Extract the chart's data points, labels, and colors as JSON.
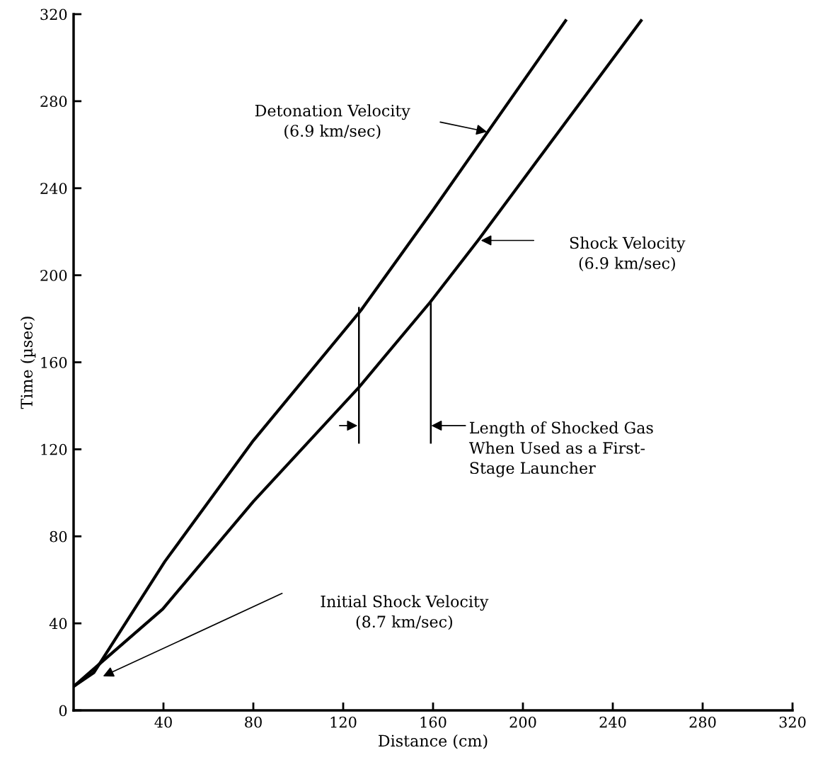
{
  "chart_data": {
    "type": "line",
    "xlabel": "Distance (cm)",
    "ylabel": "Time (µsec)",
    "xlim": [
      0,
      320
    ],
    "ylim": [
      0,
      320
    ],
    "xticks": [
      40,
      80,
      120,
      160,
      200,
      240,
      280,
      320
    ],
    "yticks": [
      0,
      40,
      80,
      120,
      160,
      200,
      240,
      280,
      320
    ],
    "grid": false,
    "legend": false,
    "marker": "none",
    "line_style": "solid",
    "series": [
      {
        "color": "#000000",
        "x": [
          0,
          9,
          40.6,
          80,
          128,
          160,
          219
        ],
        "values": [
          11,
          17.3,
          68.4,
          124,
          184,
          230,
          317
        ]
      },
      {
        "color": "#000000",
        "x": [
          0,
          10,
          39.7,
          80,
          127,
          158.7,
          180,
          252.6
        ],
        "values": [
          11,
          20,
          46.6,
          96,
          148.5,
          187.6,
          216,
          317
        ]
      },
      {
        "color": "#000000",
        "x": [
          127,
          127
        ],
        "values": [
          185,
          123
        ]
      },
      {
        "color": "#000000",
        "x": [
          159,
          159
        ],
        "values": [
          188,
          123
        ]
      }
    ],
    "annotations": [
      "Detonation Velocity\n(6.9 km/sec)",
      "Shock Velocity\n(6.9 km/sec)",
      "Length of Shocked Gas\nWhen Used as a First-\nStage Launcher",
      "Initial Shock Velocity\n(8.7 km/sec)"
    ]
  }
}
